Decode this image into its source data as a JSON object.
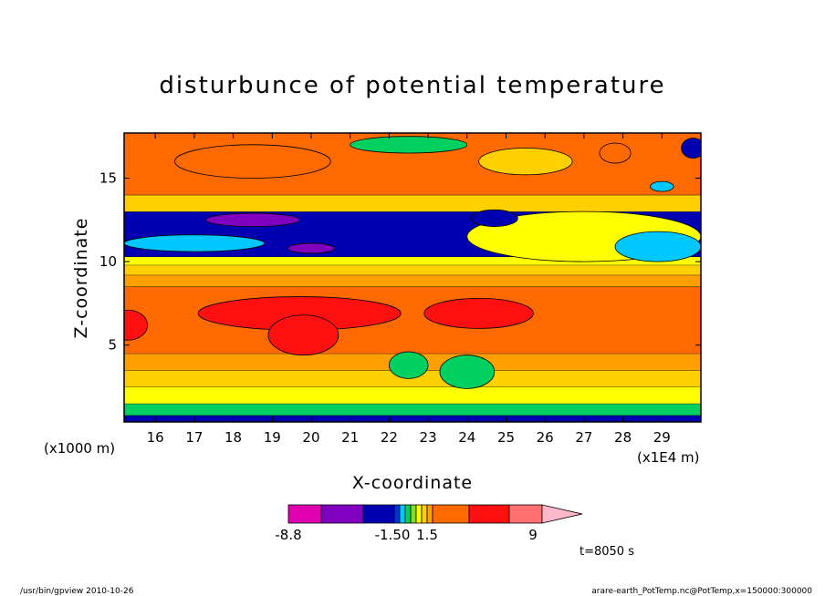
{
  "chart_data": {
    "type": "heatmap",
    "title": "disturbunce of potential temperature",
    "xlabel": "X-coordinate",
    "ylabel": "Z-coordinate",
    "xlim": [
      15.2,
      30
    ],
    "ylim": [
      0.4,
      17.7
    ],
    "x_ticks": [
      16,
      17,
      18,
      19,
      20,
      21,
      22,
      23,
      24,
      25,
      26,
      27,
      28,
      29
    ],
    "y_ticks": [
      5,
      10,
      15
    ],
    "x_unit": "(x1E4 m)",
    "y_unit": "(x1000 m)",
    "colorbar": {
      "labels": [
        "-8.8",
        "-1.50",
        "1.5",
        "9"
      ],
      "colors": [
        "#e000b0",
        "#8000c0",
        "#0000b0",
        "#0030e0",
        "#00c8ff",
        "#00d060",
        "#80e020",
        "#ffff00",
        "#ffd000",
        "#ffa000",
        "#ff6a00",
        "#ff1010",
        "#ff7070",
        "#ffb8c8"
      ]
    },
    "bands": [
      {
        "z0": 0.4,
        "z1": 0.8,
        "color": "#0000b0"
      },
      {
        "z0": 0.8,
        "z1": 1.5,
        "color": "#00d060"
      },
      {
        "z0": 1.5,
        "z1": 2.5,
        "color": "#ffff00"
      },
      {
        "z0": 2.5,
        "z1": 3.5,
        "color": "#ffd000"
      },
      {
        "z0": 3.5,
        "z1": 4.5,
        "color": "#ffa000"
      },
      {
        "z0": 4.5,
        "z1": 8.5,
        "color": "#ff6a00"
      },
      {
        "z0": 8.5,
        "z1": 9.2,
        "color": "#ffa000"
      },
      {
        "z0": 9.2,
        "z1": 9.8,
        "color": "#ffd000"
      },
      {
        "z0": 9.8,
        "z1": 10.3,
        "color": "#ffff00"
      },
      {
        "z0": 10.3,
        "z1": 13.0,
        "color": "#0000b0"
      },
      {
        "z0": 13.0,
        "z1": 14.0,
        "color": "#ffd000"
      },
      {
        "z0": 14.0,
        "z1": 17.7,
        "color": "#ff6a00"
      }
    ],
    "blobs": [
      {
        "x": 19.7,
        "z": 6.9,
        "rx": 2.6,
        "rz": 1.0,
        "color": "#ff1010"
      },
      {
        "x": 19.8,
        "z": 5.6,
        "rx": 0.9,
        "rz": 1.2,
        "color": "#ff1010"
      },
      {
        "x": 15.3,
        "z": 6.2,
        "rx": 0.5,
        "rz": 0.9,
        "color": "#ff1010"
      },
      {
        "x": 24.3,
        "z": 6.9,
        "rx": 1.4,
        "rz": 0.9,
        "color": "#ff1010"
      },
      {
        "x": 24.0,
        "z": 3.4,
        "rx": 0.7,
        "rz": 1.0,
        "color": "#00d060"
      },
      {
        "x": 22.5,
        "z": 3.8,
        "rx": 0.5,
        "rz": 0.8,
        "color": "#00d060"
      },
      {
        "x": 27.0,
        "z": 11.5,
        "rx": 3.0,
        "rz": 1.5,
        "color": "#ffff00"
      },
      {
        "x": 28.9,
        "z": 10.9,
        "rx": 1.1,
        "rz": 0.9,
        "color": "#00c8ff"
      },
      {
        "x": 17.0,
        "z": 11.1,
        "rx": 1.8,
        "rz": 0.5,
        "color": "#00c8ff"
      },
      {
        "x": 18.5,
        "z": 12.5,
        "rx": 1.2,
        "rz": 0.4,
        "color": "#8000c0"
      },
      {
        "x": 20.0,
        "z": 10.8,
        "rx": 0.6,
        "rz": 0.3,
        "color": "#8000c0"
      },
      {
        "x": 24.7,
        "z": 12.6,
        "rx": 0.6,
        "rz": 0.5,
        "color": "#0000b0"
      },
      {
        "x": 29.0,
        "z": 14.5,
        "rx": 0.3,
        "rz": 0.3,
        "color": "#00c8ff"
      },
      {
        "x": 27.8,
        "z": 16.5,
        "rx": 0.4,
        "rz": 0.6,
        "color": "#ff6a00"
      },
      {
        "x": 29.8,
        "z": 16.8,
        "rx": 0.3,
        "rz": 0.6,
        "color": "#0000b0"
      },
      {
        "x": 22.5,
        "z": 17.0,
        "rx": 1.5,
        "rz": 0.5,
        "color": "#00d060"
      },
      {
        "x": 18.5,
        "z": 16.0,
        "rx": 2.0,
        "rz": 1.0,
        "color": "#ff6a00"
      },
      {
        "x": 25.5,
        "z": 16.0,
        "rx": 1.2,
        "rz": 0.8,
        "color": "#ffd000"
      }
    ]
  },
  "annotations": {
    "time": "t=8050 s",
    "footer_left": "/usr/bin/gpview   2010-10-26",
    "footer_right": "arare-earth_PotTemp.nc@PotTemp,x=150000:300000"
  }
}
